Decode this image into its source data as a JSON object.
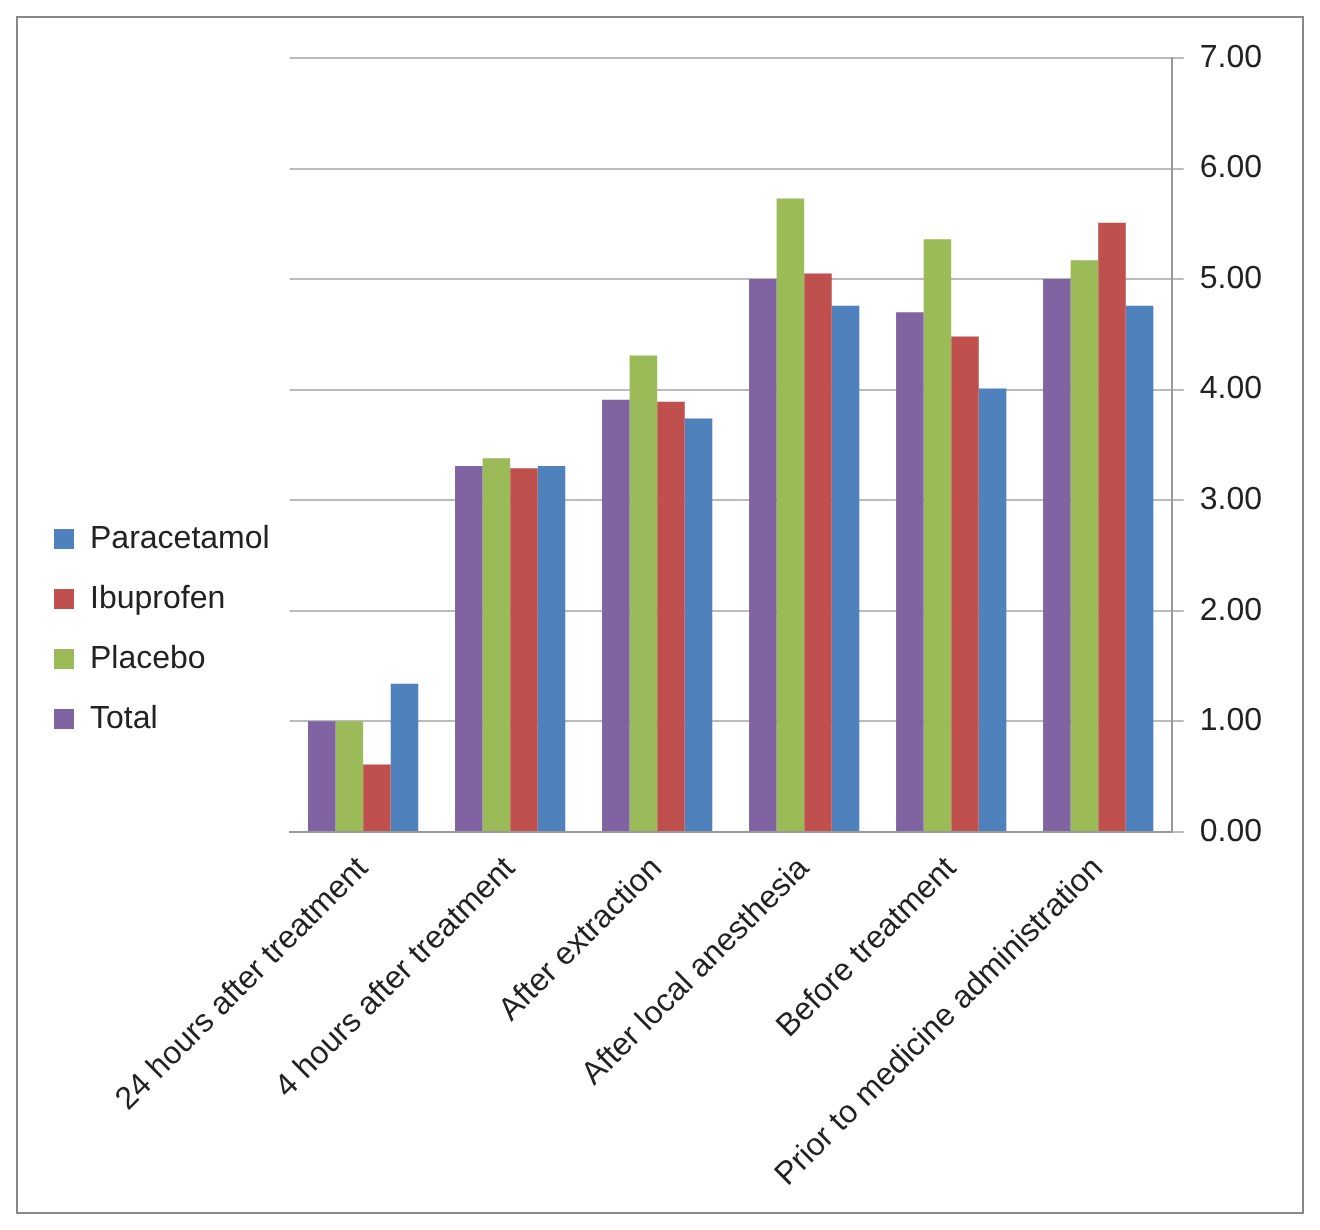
{
  "chart_data": {
    "type": "bar",
    "categories": [
      "24 hours after treatment",
      "4 hours after treatment",
      "After extraction",
      "After local anesthesia",
      "Before treatment",
      "Prior to medicine administration"
    ],
    "series": [
      {
        "name": "Total",
        "color": "#8064a2",
        "values": [
          1.0,
          3.31,
          3.91,
          5.0,
          4.7,
          5.0
        ]
      },
      {
        "name": "Placebo",
        "color": "#9bbb59",
        "values": [
          1.0,
          3.38,
          4.31,
          5.73,
          5.36,
          5.17
        ]
      },
      {
        "name": "Ibuprofen",
        "color": "#c0504d",
        "values": [
          0.61,
          3.29,
          3.89,
          5.05,
          4.48,
          5.51
        ]
      },
      {
        "name": "Paracetamol",
        "color": "#4f81bd",
        "values": [
          1.34,
          3.31,
          3.74,
          4.76,
          4.01,
          4.76
        ]
      }
    ],
    "ylim": [
      0,
      7
    ],
    "yticks": [
      {
        "value": 0,
        "label": "0.00"
      },
      {
        "value": 1,
        "label": "1.00"
      },
      {
        "value": 2,
        "label": "2.00"
      },
      {
        "value": 3,
        "label": "3.00"
      },
      {
        "value": 4,
        "label": "4.00"
      },
      {
        "value": 5,
        "label": "5.00"
      },
      {
        "value": 6,
        "label": "6.00"
      },
      {
        "value": 7,
        "label": "7.00"
      }
    ],
    "grid": "y",
    "legend": "left"
  }
}
